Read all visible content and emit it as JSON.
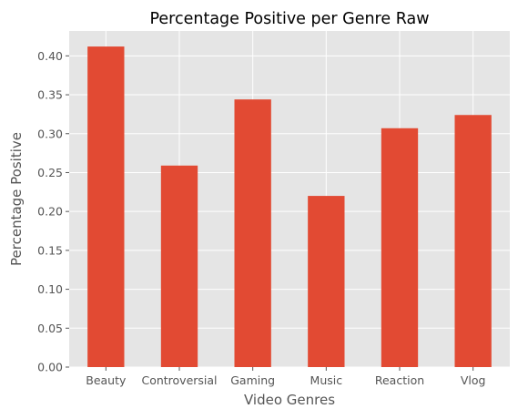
{
  "chart_data": {
    "type": "bar",
    "title": "Percentage Positive per Genre Raw",
    "xlabel": "Video Genres",
    "ylabel": "Percentage Positive",
    "categories": [
      "Beauty",
      "Controversial",
      "Gaming",
      "Music",
      "Reaction",
      "Vlog"
    ],
    "values": [
      0.412,
      0.259,
      0.344,
      0.22,
      0.307,
      0.324
    ],
    "ylim": [
      0,
      0.432
    ],
    "yticks": [
      "0.00",
      "0.05",
      "0.10",
      "0.15",
      "0.20",
      "0.25",
      "0.30",
      "0.35",
      "0.40"
    ],
    "grid": true,
    "colors": {
      "bar": "#E24A33",
      "plot_background": "#E5E5E5",
      "grid": "#FFFFFF"
    }
  }
}
